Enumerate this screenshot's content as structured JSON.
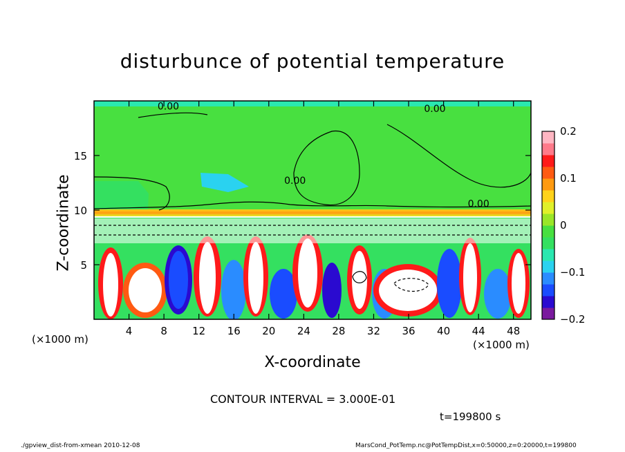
{
  "chart_data": {
    "type": "heatmap",
    "title": "disturbunce of potential temperature",
    "xlabel": "X-coordinate",
    "ylabel": "Z-coordinate",
    "x_unit_label": "(×1000 m)",
    "y_unit_label": "(×1000 m)",
    "xlim": [
      0,
      50
    ],
    "ylim": [
      0,
      20
    ],
    "x_ticks": [
      4,
      8,
      12,
      16,
      20,
      24,
      28,
      32,
      36,
      40,
      44,
      48
    ],
    "y_ticks": [
      5,
      10,
      15
    ],
    "colorbar": {
      "range": [
        -0.2,
        0.2
      ],
      "ticks": [
        "0.2",
        "0.1",
        "0",
        "−0.1",
        "−0.2"
      ],
      "tick_values": [
        0.2,
        0.1,
        0,
        -0.1,
        -0.2
      ],
      "colors": [
        "#7a1a9e",
        "#2a0ad0",
        "#1a4cff",
        "#2a8cff",
        "#2ad2f0",
        "#2ae8b0",
        "#34e060",
        "#48e040",
        "#9ae628",
        "#e0f02a",
        "#ffd21a",
        "#ff9a10",
        "#ff5a12",
        "#ff1a1a",
        "#ff7a8a",
        "#ffb6c2"
      ]
    },
    "annotations": [
      {
        "text": "0.00",
        "x": 8.5,
        "z": 19.2
      },
      {
        "text": "0.00",
        "x": 39,
        "z": 19.0
      },
      {
        "text": "0.00",
        "x": 23,
        "z": 12.4
      },
      {
        "text": "0.00",
        "x": 44,
        "z": 10.3
      }
    ]
  },
  "contour_interval": "CONTOUR INTERVAL = 3.000E-01",
  "timestamp": "t=199800 s",
  "footer_left": "./gpview_dist-from-xmean  2010-12-08",
  "footer_right": "MarsCond_PotTemp.nc@PotTempDist,x=0:50000,z=0:20000,t=199800"
}
